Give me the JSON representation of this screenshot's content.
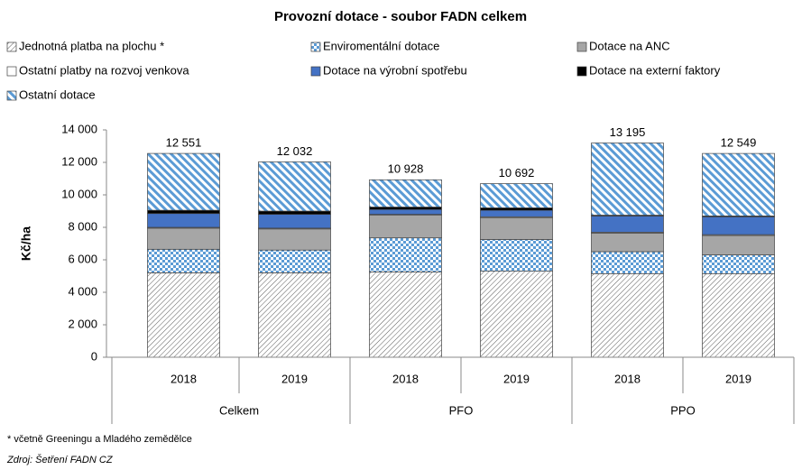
{
  "chart_data": {
    "type": "stacked_bar",
    "title": "Provozní dotace - soubor FADN celkem",
    "y_label": "Kč/ha",
    "categories": [
      "2018",
      "2019",
      "2018",
      "2019",
      "2018",
      "2019"
    ],
    "groups": [
      "Celkem",
      "PFO",
      "PPO"
    ],
    "group_size": 2,
    "series": [
      {
        "name": "Jednotná platba na plochu *",
        "color": "#595959",
        "pattern": "hatch",
        "values": [
          5200,
          5200,
          5250,
          5300,
          5150,
          5150
        ]
      },
      {
        "name": "Enviromentální dotace",
        "color": "#5b9bd5",
        "pattern": "checker",
        "values": [
          1450,
          1400,
          2100,
          1950,
          1350,
          1150
        ]
      },
      {
        "name": "Dotace na ANC",
        "color": "#a6a6a6",
        "pattern": "solid",
        "values": [
          1300,
          1300,
          1400,
          1350,
          1150,
          1200
        ]
      },
      {
        "name": "Ostatní platby na rozvoj venkova",
        "color": "#ffffff",
        "pattern": "solid",
        "values": [
          50,
          50,
          50,
          50,
          50,
          50
        ]
      },
      {
        "name": "Dotace na výrobní spotřebu",
        "color": "#4472c4",
        "pattern": "solid",
        "values": [
          850,
          850,
          300,
          400,
          1000,
          1100
        ]
      },
      {
        "name": "Dotace na externí faktory",
        "color": "#000000",
        "pattern": "solid",
        "values": [
          200,
          200,
          150,
          150,
          50,
          50
        ]
      },
      {
        "name": "Ostatní dotace",
        "color": "#5b9bd5",
        "pattern": "stripes",
        "values": [
          3501,
          3032,
          1678,
          1492,
          4445,
          3849
        ]
      }
    ],
    "totals": [
      12551,
      12032,
      10928,
      10692,
      13195,
      12549
    ],
    "total_labels": [
      "12 551",
      "12 032",
      "10 928",
      "10 692",
      "13 195",
      "12 549"
    ],
    "ylim": [
      0,
      14000
    ],
    "yticks": [
      0,
      {
        "value": 2000,
        "label": "2 000"
      },
      {
        "value": 4000,
        "label": "4 000"
      },
      {
        "value": 6000,
        "label": "6 000"
      },
      {
        "value": 8000,
        "label": "8 000"
      },
      {
        "value": 10000,
        "label": "10 000"
      },
      {
        "value": 12000,
        "label": "12 000"
      },
      {
        "value": 14000,
        "label": "14 000"
      }
    ],
    "grid": false,
    "footnote": "* včetně Greeningu a Mladého zemědělce",
    "source": "Zdroj: Šetření FADN CZ"
  }
}
